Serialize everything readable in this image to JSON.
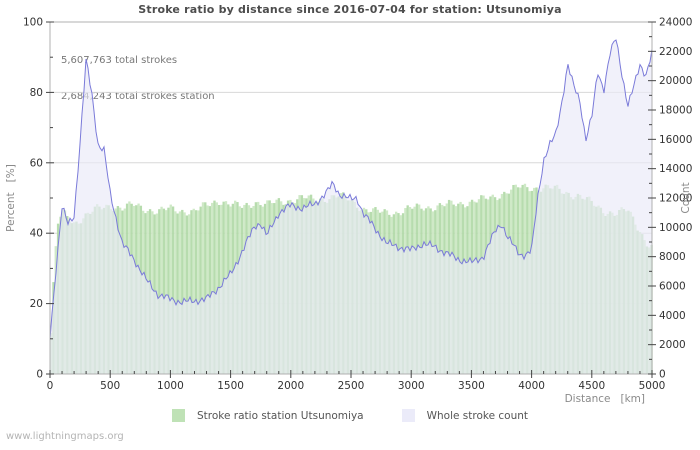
{
  "page": {
    "watermark": "www.lightningmaps.org"
  },
  "chart": {
    "title": "Stroke ratio by distance since 2016-07-04 for station: Utsunomiya",
    "annotations": {
      "line1": "5,607,763 total strokes",
      "line2": "2,684,243 total strokes station"
    },
    "legend": [
      {
        "label": "Stroke ratio station Utsunomiya",
        "swatch": "#bfe2b6"
      },
      {
        "label": "Whole stroke count",
        "swatch": "#ebebf9"
      }
    ]
  },
  "chart_data": {
    "type": "area",
    "title": "Stroke ratio by distance since 2016-07-04 for station: Utsunomiya",
    "xlabel": "Distance   [km]",
    "ylabel_left": "Percent   [%]",
    "ylabel_right": "Count",
    "xlim": [
      0,
      5000
    ],
    "ylim_left": [
      0,
      100
    ],
    "ylim_right": [
      0,
      24000
    ],
    "x_major_ticks": [
      0,
      500,
      1000,
      1500,
      2000,
      2500,
      3000,
      3500,
      4000,
      4500,
      5000
    ],
    "x_minor_step": 100,
    "left_major_ticks": [
      0,
      20,
      40,
      60,
      80,
      100
    ],
    "left_minor_step": 10,
    "right_major_ticks": [
      0,
      2000,
      4000,
      6000,
      8000,
      10000,
      12000,
      14000,
      16000,
      18000,
      20000,
      22000,
      24000
    ],
    "right_minor_step": 1000,
    "grid_percent_lines": [
      20,
      40,
      60,
      80
    ],
    "legend_position": "bottom-center",
    "series": [
      {
        "name": "Stroke ratio station Utsunomiya",
        "axis": "left",
        "unit": "%",
        "style": "striped-bars",
        "x": [
          0,
          30,
          60,
          100,
          200,
          300,
          400,
          500,
          600,
          700,
          800,
          900,
          1000,
          1100,
          1200,
          1300,
          1400,
          1500,
          1600,
          1700,
          1800,
          1900,
          2000,
          2100,
          2200,
          2300,
          2400,
          2500,
          2600,
          2700,
          2800,
          2900,
          3000,
          3100,
          3200,
          3300,
          3400,
          3500,
          3600,
          3700,
          3800,
          3900,
          4000,
          4100,
          4200,
          4300,
          4400,
          4500,
          4600,
          4700,
          4800,
          4900,
          4950,
          5000
        ],
        "values": [
          5,
          26,
          42,
          46,
          43,
          45,
          47,
          48,
          47,
          48,
          47,
          46,
          47,
          46.5,
          46,
          48,
          49.5,
          48,
          47.5,
          49,
          48,
          49,
          49.5,
          50,
          49.5,
          50,
          50.5,
          49.5,
          47,
          46,
          46,
          46,
          47,
          47.5,
          47.5,
          48,
          48.5,
          49,
          49.5,
          50.5,
          52,
          53,
          53,
          53,
          52.5,
          51.5,
          50.5,
          48.5,
          46.5,
          45.5,
          46.5,
          41,
          37.5,
          36
        ]
      },
      {
        "name": "Whole stroke count",
        "axis": "right",
        "unit": "strokes",
        "style": "line-area",
        "x": [
          0,
          50,
          100,
          150,
          200,
          250,
          300,
          350,
          400,
          450,
          500,
          600,
          700,
          800,
          900,
          1000,
          1100,
          1200,
          1300,
          1400,
          1500,
          1600,
          1700,
          1750,
          1800,
          1900,
          2000,
          2100,
          2200,
          2300,
          2350,
          2400,
          2500,
          2550,
          2600,
          2700,
          2800,
          2900,
          3000,
          3100,
          3200,
          3300,
          3400,
          3500,
          3600,
          3700,
          3750,
          3800,
          3900,
          3950,
          4000,
          4050,
          4100,
          4150,
          4200,
          4250,
          4300,
          4350,
          4400,
          4450,
          4500,
          4550,
          4600,
          4650,
          4700,
          4750,
          4800,
          4850,
          4900,
          4950,
          5000
        ],
        "values": [
          2500,
          7200,
          11400,
          10200,
          10800,
          15800,
          21400,
          19000,
          15600,
          15200,
          12300,
          8900,
          7800,
          6400,
          5400,
          5100,
          4900,
          5000,
          5100,
          5900,
          6800,
          8400,
          10100,
          10300,
          9400,
          11000,
          11500,
          11300,
          11600,
          12400,
          13000,
          12300,
          11900,
          12000,
          11000,
          9900,
          8900,
          8650,
          8450,
          8900,
          8650,
          8200,
          7800,
          7600,
          8000,
          9800,
          10300,
          9300,
          8200,
          8100,
          8400,
          12000,
          14600,
          15600,
          16300,
          18500,
          21100,
          19600,
          18700,
          16000,
          17500,
          20600,
          19400,
          21800,
          22900,
          20500,
          18300,
          19600,
          21100,
          20400,
          21900
        ]
      }
    ],
    "colors": {
      "ratio_bar_light": "#cde8c5",
      "ratio_bar_dark": "#b4dbaa",
      "count_fill": "#e9e9f7",
      "count_line": "#7a7ad9",
      "grid": "#d8d8d8",
      "plot_border": "#b0b0b0",
      "tick": "#444444",
      "tick_label": "#333333",
      "axis_title": "#8a8a8a"
    }
  }
}
